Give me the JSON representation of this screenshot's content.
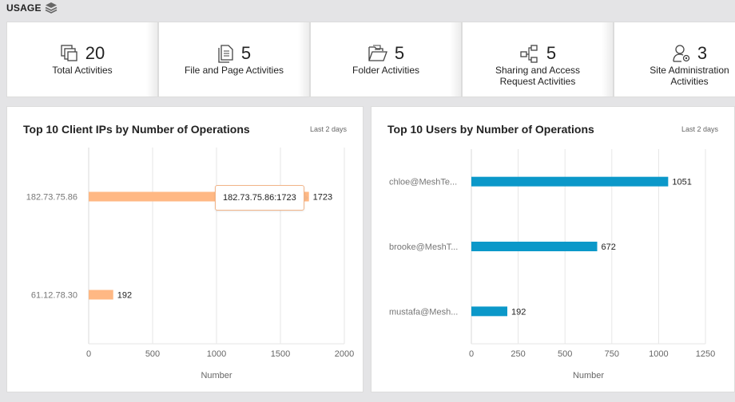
{
  "header": {
    "title": "USAGE",
    "icon": "layers-icon"
  },
  "stats": [
    {
      "value": "20",
      "label": "Total Activities",
      "icon": "copy-icon"
    },
    {
      "value": "5",
      "label": "File and Page Activities",
      "icon": "file-icon"
    },
    {
      "value": "5",
      "label": "Folder Activities",
      "icon": "folder-icon"
    },
    {
      "value": "5",
      "label": "Sharing and Access\nRequest Activities",
      "icon": "sharing-icon"
    },
    {
      "value": "3",
      "label": "Site Administration\nActivities",
      "icon": "user-gear-icon"
    }
  ],
  "chart_data": [
    {
      "type": "bar",
      "orientation": "horizontal",
      "title": "Top 10 Client IPs by Number of Operations",
      "range_label": "Last 2 days",
      "categories": [
        "182.73.75.86",
        "61.12.78.30"
      ],
      "values": [
        1723,
        192
      ],
      "xlabel": "Number",
      "xlim": [
        0,
        2000
      ],
      "xticks": [
        0,
        500,
        1000,
        1500,
        2000
      ],
      "color": "#ffb884",
      "grid": true,
      "tooltip": "182.73.75.86:1723"
    },
    {
      "type": "bar",
      "orientation": "horizontal",
      "title": "Top 10 Users by Number of Operations",
      "range_label": "Last 2 days",
      "categories": [
        "chloe@MeshTe...",
        "brooke@MeshT...",
        "mustafa@Mesh..."
      ],
      "values": [
        1051,
        672,
        192
      ],
      "xlabel": "Number",
      "xlim": [
        0,
        1250
      ],
      "xticks": [
        0,
        250,
        500,
        750,
        1000,
        1250
      ],
      "color": "#0b98c9",
      "grid": true
    }
  ]
}
